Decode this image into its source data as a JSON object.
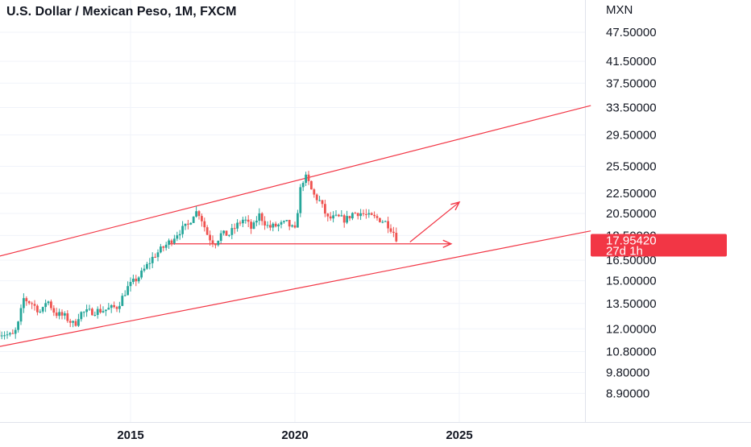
{
  "title": "U.S. Dollar / Mexican Peso, 1M, FXCM",
  "currency_label": "MXN",
  "last_price": {
    "value": "17.95420",
    "countdown": "27d 1h",
    "color": "#f23645"
  },
  "colors": {
    "up": "#26a69a",
    "down": "#ef5350",
    "drawing": "#f23645",
    "grid": "#f0f3fa",
    "text": "#131722"
  },
  "chart_data": {
    "type": "candlestick",
    "title": "U.S. Dollar / Mexican Peso, 1M, FXCM",
    "y_scale": "log",
    "ylim": [
      8.0,
      56.0
    ],
    "xlim": [
      2011.0,
      2029.5
    ],
    "grid": true,
    "y_ticks": [
      "47.50000",
      "41.50000",
      "37.50000",
      "33.50000",
      "29.50000",
      "25.50000",
      "22.50000",
      "20.50000",
      "18.50000",
      "16.50000",
      "15.00000",
      "13.50000",
      "12.00000",
      "10.80000",
      "9.80000",
      "8.90000"
    ],
    "x_ticks": [
      "2015",
      "2020",
      "2025"
    ],
    "candle_anchors": [
      {
        "t": 2011.0,
        "v": 11.8
      },
      {
        "t": 2011.4,
        "v": 11.6
      },
      {
        "t": 2011.55,
        "v": 12.0
      },
      {
        "t": 2011.75,
        "v": 13.8
      },
      {
        "t": 2012.0,
        "v": 13.5
      },
      {
        "t": 2012.3,
        "v": 12.9
      },
      {
        "t": 2012.45,
        "v": 13.8
      },
      {
        "t": 2012.7,
        "v": 12.9
      },
      {
        "t": 2013.0,
        "v": 12.7
      },
      {
        "t": 2013.3,
        "v": 12.2
      },
      {
        "t": 2013.45,
        "v": 12.9
      },
      {
        "t": 2013.8,
        "v": 13.0
      },
      {
        "t": 2014.2,
        "v": 13.1
      },
      {
        "t": 2014.6,
        "v": 13.3
      },
      {
        "t": 2014.9,
        "v": 14.5
      },
      {
        "t": 2015.3,
        "v": 15.4
      },
      {
        "t": 2015.7,
        "v": 16.8
      },
      {
        "t": 2016.2,
        "v": 18.0
      },
      {
        "t": 2016.45,
        "v": 18.8
      },
      {
        "t": 2016.75,
        "v": 19.4
      },
      {
        "t": 2016.95,
        "v": 20.7
      },
      {
        "t": 2017.1,
        "v": 20.5
      },
      {
        "t": 2017.35,
        "v": 18.5
      },
      {
        "t": 2017.55,
        "v": 17.8
      },
      {
        "t": 2017.75,
        "v": 18.6
      },
      {
        "t": 2018.0,
        "v": 18.6
      },
      {
        "t": 2018.3,
        "v": 19.6
      },
      {
        "t": 2018.45,
        "v": 20.0
      },
      {
        "t": 2018.7,
        "v": 19.0
      },
      {
        "t": 2018.9,
        "v": 20.4
      },
      {
        "t": 2019.2,
        "v": 19.2
      },
      {
        "t": 2019.5,
        "v": 19.4
      },
      {
        "t": 2019.75,
        "v": 19.6
      },
      {
        "t": 2020.0,
        "v": 18.9
      },
      {
        "t": 2020.2,
        "v": 23.8
      },
      {
        "t": 2020.35,
        "v": 24.2
      },
      {
        "t": 2020.55,
        "v": 22.4
      },
      {
        "t": 2020.75,
        "v": 21.7
      },
      {
        "t": 2021.0,
        "v": 20.0
      },
      {
        "t": 2021.3,
        "v": 20.1
      },
      {
        "t": 2021.55,
        "v": 19.9
      },
      {
        "t": 2021.75,
        "v": 20.5
      },
      {
        "t": 2021.95,
        "v": 20.6
      },
      {
        "t": 2022.25,
        "v": 20.2
      },
      {
        "t": 2022.55,
        "v": 20.0
      },
      {
        "t": 2022.8,
        "v": 19.6
      },
      {
        "t": 2023.0,
        "v": 18.8
      },
      {
        "t": 2023.15,
        "v": 17.95
      }
    ],
    "drawings": {
      "channel_upper": {
        "start": {
          "t": 2011.0,
          "v": 16.8
        },
        "end": {
          "t": 2029.0,
          "v": 33.8
        }
      },
      "channel_lower": {
        "start": {
          "t": 2011.0,
          "v": 11.05
        },
        "end": {
          "t": 2029.0,
          "v": 18.9
        }
      },
      "support_line": {
        "start": {
          "t": 2016.2,
          "v": 17.8
        },
        "end": {
          "t": 2024.75,
          "v": 17.8
        }
      },
      "projection_arrow": {
        "start": {
          "t": 2023.5,
          "v": 17.95
        },
        "end": {
          "t": 2025.0,
          "v": 21.6
        }
      }
    }
  }
}
